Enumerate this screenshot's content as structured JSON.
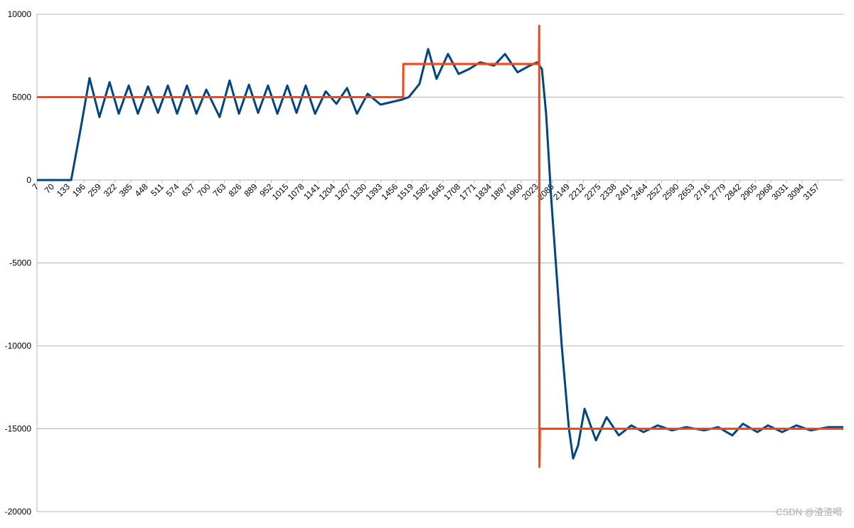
{
  "watermark": "CSDN @渣渣喝",
  "chart_data": {
    "type": "line",
    "xlim": [
      7,
      3260
    ],
    "xticks": [
      7,
      70,
      133,
      196,
      259,
      322,
      385,
      448,
      511,
      574,
      637,
      700,
      763,
      826,
      889,
      952,
      1015,
      1078,
      1141,
      1204,
      1267,
      1330,
      1393,
      1456,
      1519,
      1582,
      1645,
      1708,
      1771,
      1834,
      1897,
      1960,
      2023,
      2086,
      2149,
      2212,
      2275,
      2338,
      2401,
      2464,
      2527,
      2590,
      2653,
      2716,
      2779,
      2842,
      2905,
      2968,
      3031,
      3094,
      3157
    ],
    "ylim": [
      -20000,
      10000
    ],
    "yticks": [
      10000,
      5000,
      0,
      -5000,
      -10000,
      -15000,
      -20000
    ],
    "grid": true,
    "series": [
      {
        "color": "#004586",
        "x": [
          7,
          145,
          182,
          219,
          259,
          300,
          337,
          377,
          414,
          455,
          495,
          535,
          572,
          612,
          650,
          690,
          744,
          784,
          822,
          862,
          899,
          939,
          977,
          1017,
          1054,
          1091,
          1129,
          1172,
          1215,
          1258,
          1298,
          1341,
          1393,
          1436,
          1479,
          1507,
          1550,
          1585,
          1619,
          1665,
          1708,
          1751,
          1794,
          1851,
          1895,
          1946,
          1995,
          2024,
          2044,
          2061,
          2081,
          2124,
          2153,
          2170,
          2190,
          2216,
          2262,
          2305,
          2354,
          2405,
          2454,
          2511,
          2569,
          2626,
          2698,
          2755,
          2812,
          2855,
          2913,
          2956,
          3013,
          3071,
          3128,
          3200,
          3260
        ],
        "values": [
          0,
          0,
          3000,
          6150,
          3800,
          5900,
          4000,
          5700,
          4000,
          5650,
          4050,
          5700,
          4000,
          5700,
          4000,
          5450,
          3800,
          6000,
          4000,
          5750,
          4050,
          5700,
          4000,
          5700,
          4050,
          5700,
          4000,
          5350,
          4600,
          5550,
          4000,
          5200,
          4550,
          4700,
          4850,
          5000,
          5800,
          7900,
          6100,
          7600,
          6400,
          6700,
          7100,
          6900,
          7600,
          6500,
          6900,
          7100,
          6700,
          4000,
          -1000,
          -10000,
          -15000,
          -16800,
          -16000,
          -13800,
          -15700,
          -14300,
          -15400,
          -14800,
          -15200,
          -14800,
          -15100,
          -14900,
          -15100,
          -14900,
          -15400,
          -14700,
          -15200,
          -14800,
          -15200,
          -14800,
          -15100,
          -14900,
          -14900
        ]
      },
      {
        "color": "#ff420e",
        "x": [
          7,
          1484,
          1485,
          2032,
          2033,
          2034,
          2036,
          3260
        ],
        "values": [
          5000,
          5000,
          7000,
          7000,
          9300,
          -17300,
          -15000,
          -15000
        ]
      }
    ]
  }
}
